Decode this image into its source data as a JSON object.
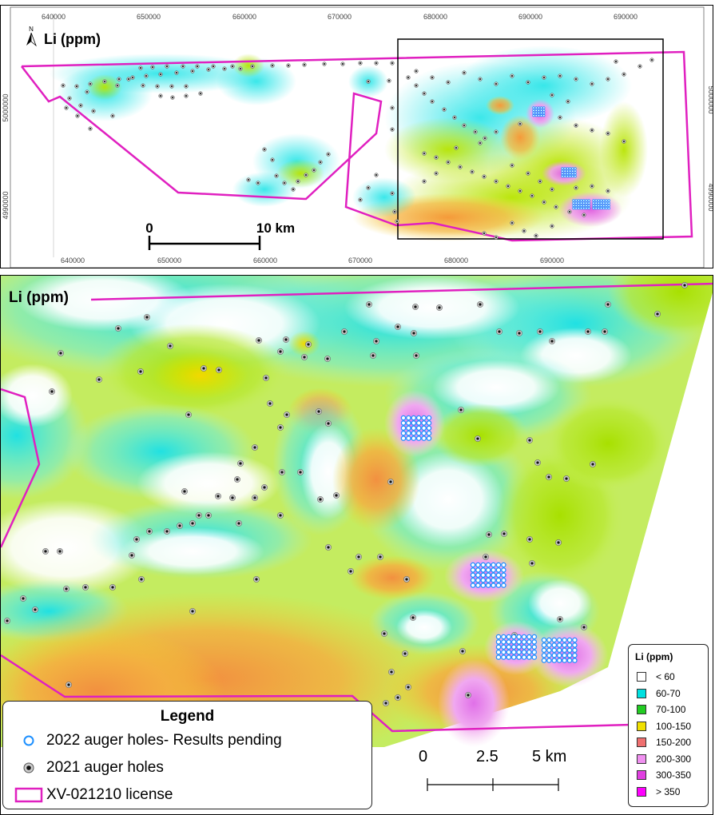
{
  "top_map": {
    "title": "Li (ppm)",
    "north_label": "N",
    "x_ticks": [
      "640000",
      "650000",
      "660000",
      "670000",
      "680000",
      "690000"
    ],
    "y_ticks": [
      "5000000",
      "4990000"
    ],
    "scale_labels": [
      "0",
      "10 km"
    ]
  },
  "bottom_map": {
    "title": "Li (ppm)",
    "scale_labels": [
      "0",
      "2.5",
      "5 km"
    ]
  },
  "legend": {
    "title": "Legend",
    "items": [
      {
        "label": "2022 auger holes- Results pending",
        "symbol": "open-blue-circle-icon"
      },
      {
        "label": "2021 auger holes",
        "symbol": "black-dot-icon"
      },
      {
        "label": "XV-021210 license",
        "symbol": "magenta-rectangle-icon"
      }
    ]
  },
  "li_classes": {
    "title": "Li (ppm)",
    "items": [
      {
        "label": "< 60",
        "color": "#ffffff"
      },
      {
        "label": "60-70",
        "color": "#00e0e0"
      },
      {
        "label": "70-100",
        "color": "#22cc22"
      },
      {
        "label": "100-150",
        "color": "#f0e000"
      },
      {
        "label": "150-200",
        "color": "#f07070"
      },
      {
        "label": "200-300",
        "color": "#f090f0"
      },
      {
        "label": "300-350",
        "color": "#e040e0"
      },
      {
        "label": "> 350",
        "color": "#ff00ff"
      }
    ]
  },
  "colors": {
    "license": "#e020c0",
    "hole_2022": "#1e90ff",
    "hole_2021": "#222222"
  }
}
